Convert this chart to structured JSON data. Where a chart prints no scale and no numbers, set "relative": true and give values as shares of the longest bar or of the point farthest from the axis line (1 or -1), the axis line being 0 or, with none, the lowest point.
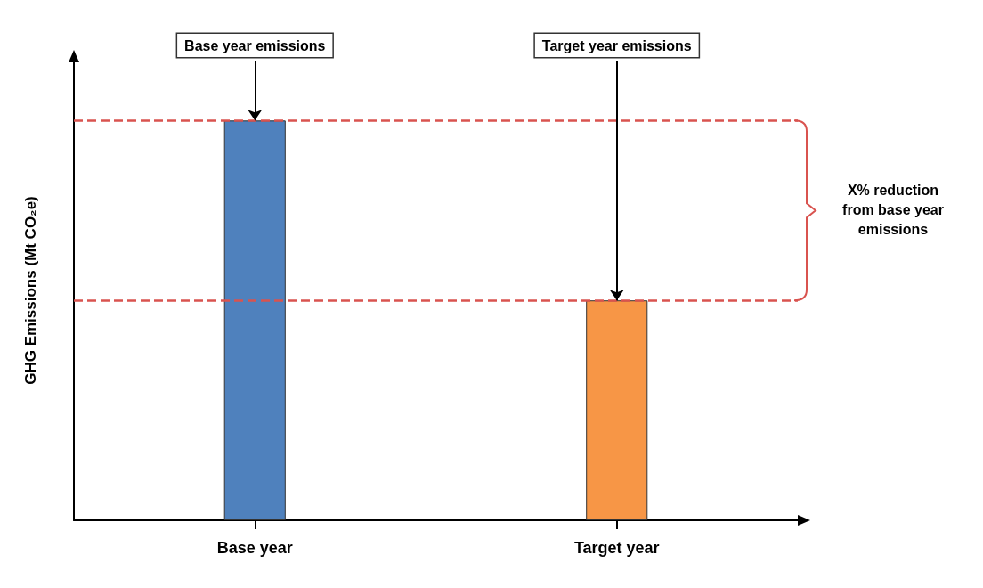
{
  "chart_data": {
    "type": "bar",
    "relative": true,
    "ylabel": "GHG Emissions (Mt CO₂e)",
    "categories": [
      "Base year",
      "Target year"
    ],
    "values": [
      1,
      0.55
    ],
    "colors": [
      "#4f81bd",
      "#f79646"
    ],
    "ref_lines": [
      {
        "axis": "y",
        "value": 1,
        "color": "#d9534f",
        "line_style": "dashed"
      },
      {
        "axis": "y",
        "value": 0.55,
        "color": "#d9534f",
        "line_style": "dashed"
      }
    ],
    "annotations": [
      {
        "text": "Base year emissions",
        "x": "Base year",
        "y": 1
      },
      {
        "text": "Target year emissions",
        "x": "Target year",
        "y": 0.55
      },
      "X% reduction\nfrom base year\nemissions"
    ],
    "grid": false
  }
}
